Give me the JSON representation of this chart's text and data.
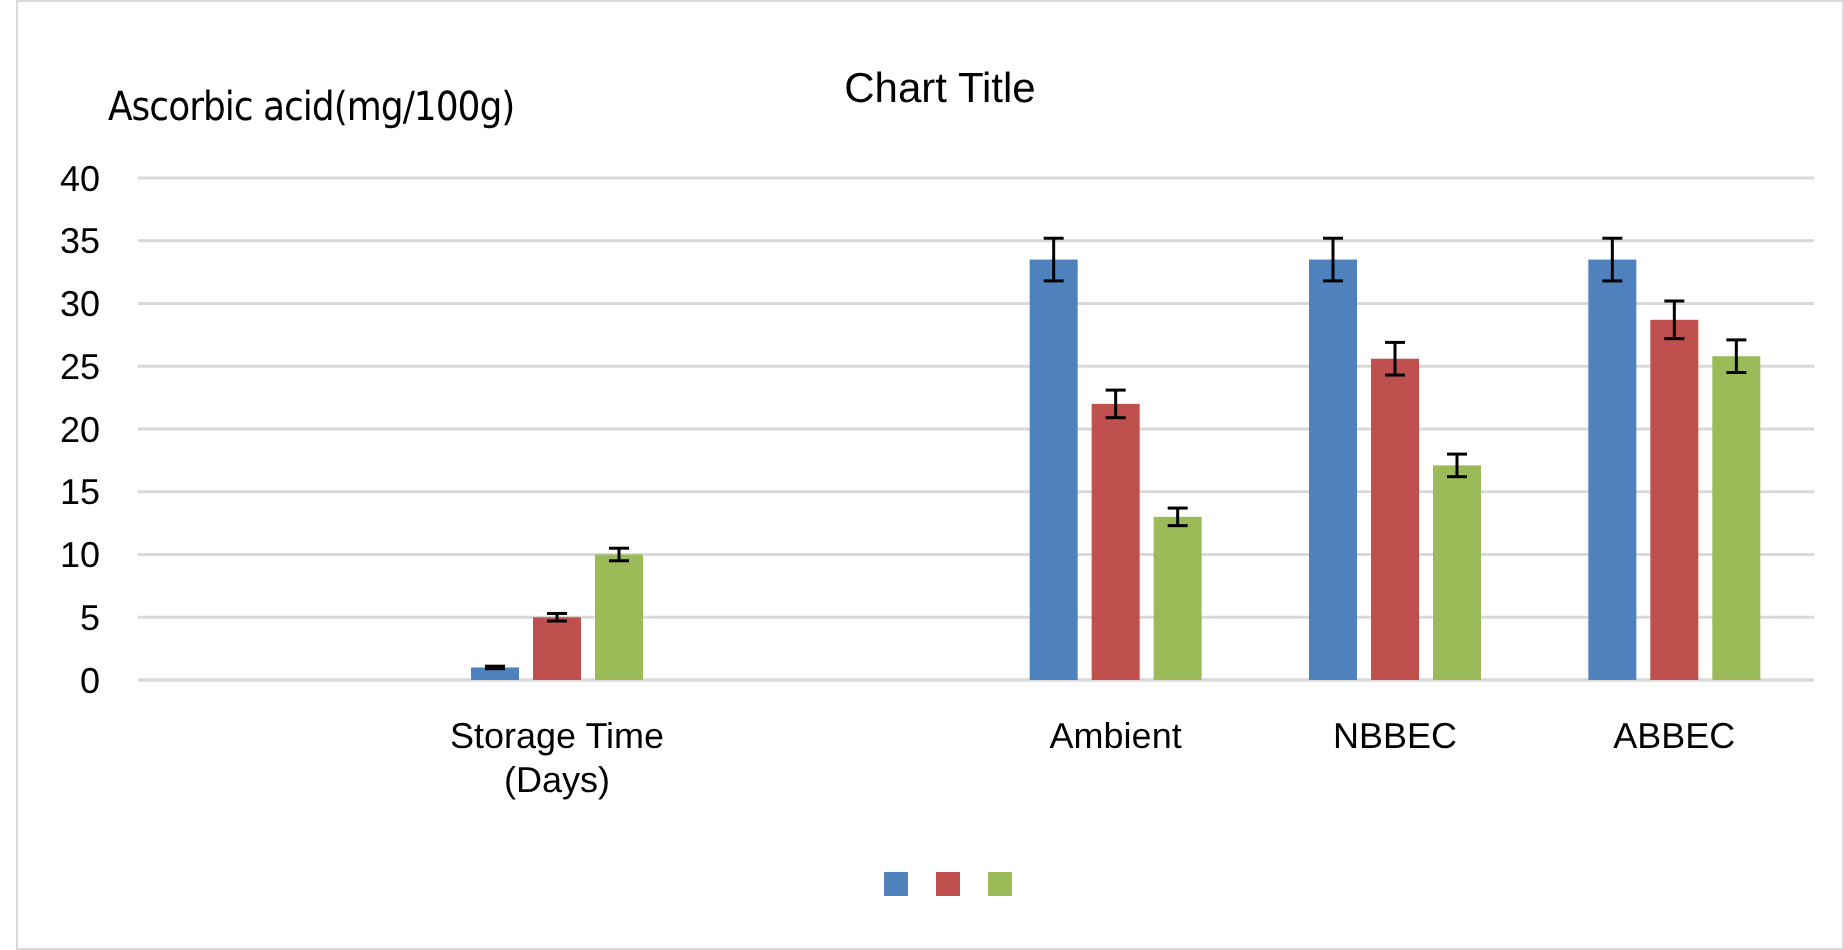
{
  "chart_data": {
    "type": "bar",
    "title": "Chart Title",
    "ylabel": "Ascorbic acid(mg/100g)",
    "categories": [
      null,
      "Storage Time (Days)",
      null,
      "Ambient",
      "NBBEC",
      "ABBEC"
    ],
    "series": [
      {
        "color": "#4f81bd",
        "values": [
          null,
          1.0,
          null,
          33.5,
          33.5,
          33.5
        ],
        "errors": [
          null,
          0.1,
          null,
          1.7,
          1.7,
          1.7
        ]
      },
      {
        "color": "#c0504d",
        "values": [
          null,
          5.0,
          null,
          22.0,
          25.6,
          28.7
        ],
        "errors": [
          null,
          0.3,
          null,
          1.1,
          1.3,
          1.5
        ]
      },
      {
        "color": "#9bbb59",
        "values": [
          null,
          10.0,
          null,
          13.0,
          17.1,
          25.8
        ],
        "errors": [
          null,
          0.5,
          null,
          0.7,
          0.9,
          1.3
        ]
      }
    ],
    "ylim": [
      0,
      40
    ],
    "yticks": [
      0,
      5,
      10,
      15,
      20,
      25,
      30,
      35,
      40
    ],
    "grid": "y"
  }
}
